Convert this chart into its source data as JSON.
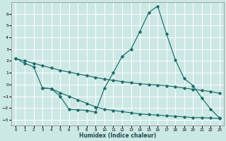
{
  "bg_color": "#cce8e4",
  "line_color": "#1a6b6b",
  "grid_color": "#ffffff",
  "xlabel": "Humidex (Indice chaleur)",
  "xlim": [
    -0.5,
    23.5
  ],
  "ylim": [
    -3.5,
    7.0
  ],
  "yticks": [
    -3,
    -2,
    -1,
    0,
    1,
    2,
    3,
    4,
    5,
    6
  ],
  "xticks": [
    0,
    1,
    2,
    3,
    4,
    5,
    6,
    7,
    8,
    9,
    10,
    11,
    12,
    13,
    14,
    15,
    16,
    17,
    18,
    19,
    20,
    21,
    22,
    23
  ],
  "lineA_x": [
    0,
    1,
    2,
    3,
    4,
    5,
    6,
    7,
    8,
    9,
    10,
    11,
    12,
    13,
    14,
    15,
    16,
    17,
    18,
    19,
    20,
    21,
    22,
    23
  ],
  "lineA_y": [
    2.2,
    2.0,
    1.8,
    1.6,
    1.4,
    1.2,
    1.05,
    0.9,
    0.75,
    0.6,
    0.45,
    0.35,
    0.25,
    0.15,
    0.05,
    0.0,
    -0.05,
    -0.1,
    -0.2,
    -0.3,
    -0.4,
    -0.5,
    -0.6,
    -0.75
  ],
  "lineB_x": [
    0,
    1,
    2,
    3,
    4,
    5,
    6,
    7,
    8,
    9,
    10,
    11,
    12,
    13,
    14,
    15,
    16,
    17,
    18,
    19,
    20,
    21,
    22,
    23
  ],
  "lineB_y": [
    2.2,
    1.8,
    1.5,
    -0.3,
    -0.35,
    -1.0,
    -2.1,
    -2.15,
    -2.2,
    -2.35,
    -0.3,
    1.0,
    2.4,
    3.0,
    4.5,
    6.1,
    6.65,
    4.3,
    2.1,
    0.5,
    -0.1,
    -1.15,
    -2.1,
    -2.85
  ],
  "lineC_x": [
    3,
    4,
    5,
    6,
    7,
    8,
    9,
    10,
    11,
    12,
    13,
    14,
    15,
    16,
    17,
    18,
    19,
    20,
    21,
    22,
    23
  ],
  "lineC_y": [
    -0.3,
    -0.35,
    -0.7,
    -1.0,
    -1.3,
    -1.6,
    -1.9,
    -2.1,
    -2.2,
    -2.3,
    -2.4,
    -2.5,
    -2.55,
    -2.6,
    -2.65,
    -2.7,
    -2.75,
    -2.8,
    -2.82,
    -2.85,
    -2.88
  ]
}
